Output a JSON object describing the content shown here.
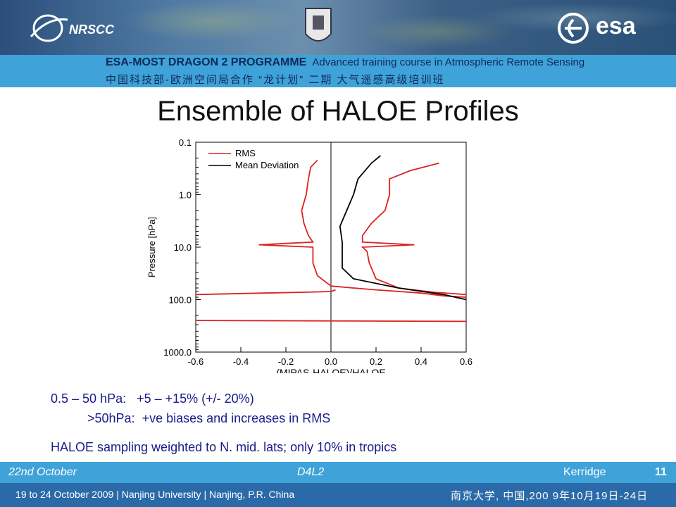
{
  "header": {
    "nrscc_logo_text": "NRSCC",
    "esa_logo_text": "esa",
    "programme": "ESA-MOST DRAGON 2 PROGRAMME",
    "course": "Advanced training course in Atmospheric Remote Sensing",
    "chinese_line": "中国科技部-欧洲空间局合作 “龙计划” 二期    大气遥感高级培训班"
  },
  "slide": {
    "title": "Ensemble of HALOE Profiles",
    "line1": "0.5 – 50 hPa:   +5 – +15% (+/- 20%)",
    "line2": ">50hPa:  +ve biases and increases in RMS",
    "line3": "HALOE sampling weighted to N. mid. lats; only 10% in tropics"
  },
  "footer": {
    "date": "22nd October",
    "session": "D4L2",
    "author": "Kerridge",
    "page": "11"
  },
  "bottom_bar": {
    "left": "19 to 24 October 2009 | Nanjing University | Nanjing, P.R. China",
    "right": "南京大学, 中国,200 9年10月19日-24日"
  },
  "colors": {
    "rms": "#dd2222",
    "mean_deviation": "#000000",
    "stripe": "#3fa2d8"
  },
  "chart_data": {
    "type": "line",
    "xlabel": "(MIPAS-HALOE)/HALOE",
    "ylabel": "Pressure [hPa]",
    "xlim": [
      -0.6,
      0.6
    ],
    "ylim": [
      0.1,
      1000.0
    ],
    "y_scale": "log",
    "x_ticks": [
      "-0.6",
      "-0.4",
      "-0.2",
      "0.0",
      "0.2",
      "0.4",
      "0.6"
    ],
    "y_ticks": [
      "0.1",
      "1.0",
      "10.0",
      "100.0",
      "1000.0"
    ],
    "legend_position": "top-left",
    "series": [
      {
        "name": "RMS",
        "color": "#dd2222",
        "segments": [
          [
            [
              -0.06,
              0.22
            ],
            [
              -0.09,
              0.3
            ],
            [
              -0.1,
              0.5
            ],
            [
              -0.11,
              1.0
            ],
            [
              -0.13,
              2.0
            ],
            [
              -0.12,
              3.5
            ],
            [
              -0.1,
              6
            ],
            [
              -0.08,
              8
            ],
            [
              -0.32,
              9
            ],
            [
              -0.08,
              10
            ],
            [
              -0.08,
              12
            ],
            [
              -0.08,
              20
            ],
            [
              -0.06,
              35
            ],
            [
              0.0,
              55
            ],
            [
              0.1,
              60
            ],
            [
              0.2,
              65
            ],
            [
              0.4,
              75
            ],
            [
              0.5,
              85
            ],
            [
              0.6,
              90
            ]
          ],
          [
            [
              0.48,
              0.25
            ],
            [
              0.35,
              0.35
            ],
            [
              0.26,
              0.5
            ],
            [
              0.26,
              1.0
            ],
            [
              0.24,
              2.0
            ],
            [
              0.18,
              3.5
            ],
            [
              0.14,
              6
            ],
            [
              0.14,
              8
            ],
            [
              0.37,
              9
            ],
            [
              0.14,
              10
            ],
            [
              0.16,
              12
            ],
            [
              0.17,
              20
            ],
            [
              0.2,
              40
            ],
            [
              0.3,
              60
            ],
            [
              0.45,
              72
            ],
            [
              0.6,
              80
            ]
          ],
          [
            [
              -0.6,
              80
            ],
            [
              -0.3,
              75
            ],
            [
              -0.1,
              72
            ],
            [
              0.0,
              70
            ],
            [
              0.02,
              65
            ]
          ],
          [
            [
              -0.6,
              250
            ],
            [
              0.6,
              260
            ]
          ]
        ]
      },
      {
        "name": "Mean Deviation",
        "color": "#000000",
        "segments": [
          [
            [
              0.22,
              0.18
            ],
            [
              0.18,
              0.25
            ],
            [
              0.12,
              0.5
            ],
            [
              0.1,
              1.0
            ],
            [
              0.07,
              2.0
            ],
            [
              0.04,
              4
            ],
            [
              0.05,
              8
            ],
            [
              0.05,
              12
            ],
            [
              0.05,
              25
            ],
            [
              0.1,
              40
            ],
            [
              0.3,
              60
            ],
            [
              0.5,
              80
            ],
            [
              0.6,
              100
            ]
          ]
        ]
      }
    ]
  }
}
